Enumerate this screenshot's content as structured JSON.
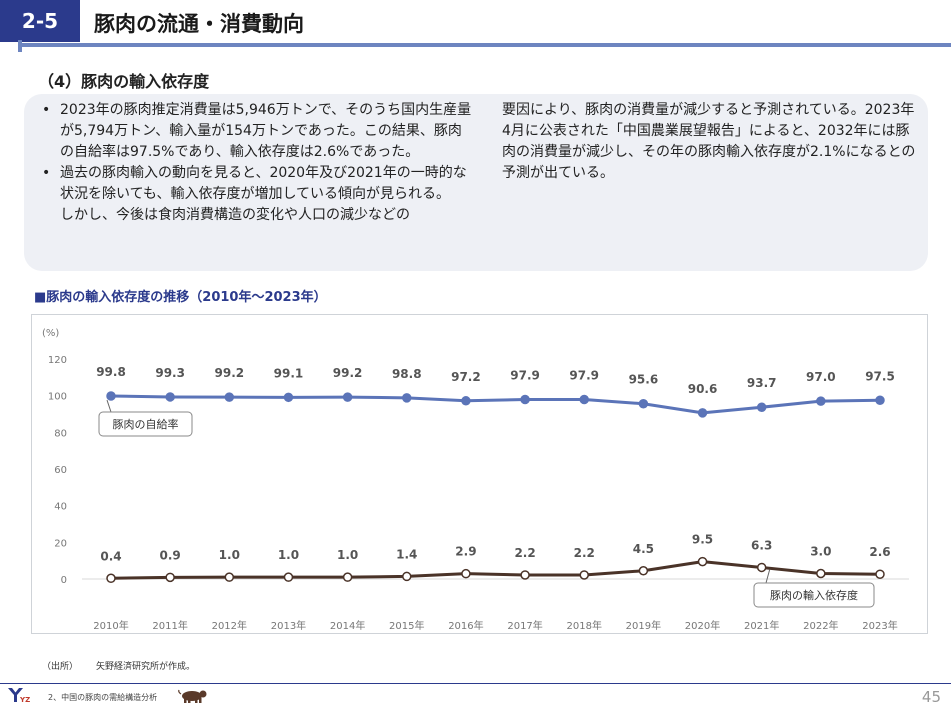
{
  "header": {
    "badge": "2-5",
    "title": "豚肉の流通・消費動向"
  },
  "section_title": "（4）豚肉の輸入依存度",
  "body": {
    "bullet1": "2023年の豚肉推定消費量は5,946万トンで、そのうち国内生産量が5,794万トン、輸入量が154万トンであった。この結果、豚肉の自給率は97.5%であり、輸入依存度は2.6%であった。",
    "bullet2": "過去の豚肉輸入の動向を見ると、2020年及び2021年の一時的な状況を除いても、輸入依存度が増加している傾向が見られる。",
    "bullet2_cont": "しかし、今後は食肉消費構造の変化や人口の減少などの",
    "right": "要因により、豚肉の消費量が減少すると予測されている。2023年4月に公表された「中国農業展望報告」によると、2032年には豚肉の消費量が減少し、その年の豚肉輸入依存度が2.1%になるとの予測が出ている。"
  },
  "chart_title": "■豚肉の輸入依存度の推移（2010年～2023年）",
  "chart_data": {
    "type": "line",
    "title": "豚肉の輸入依存度の推移（2010年～2023年）",
    "ylabel": "(%)",
    "ylim": [
      0,
      120
    ],
    "yticks": [
      "0",
      "20",
      "40",
      "60",
      "80",
      "100",
      "120"
    ],
    "categories": [
      "2010年",
      "2011年",
      "2012年",
      "2013年",
      "2014年",
      "2015年",
      "2016年",
      "2017年",
      "2018年",
      "2019年",
      "2020年",
      "2021年",
      "2022年",
      "2023年"
    ],
    "series": [
      {
        "name": "豚肉の自給率",
        "color": "#5b74b8",
        "values": [
          99.8,
          99.3,
          99.2,
          99.1,
          99.2,
          98.8,
          97.2,
          97.9,
          97.9,
          95.6,
          90.6,
          93.7,
          97.0,
          97.5
        ],
        "labels": [
          "99.8",
          "99.3",
          "99.2",
          "99.1",
          "99.2",
          "98.8",
          "97.2",
          "97.9",
          "97.9",
          "95.6",
          "90.6",
          "93.7",
          "97.0",
          "97.5"
        ]
      },
      {
        "name": "豚肉の輸入依存度",
        "color": "#4a3328",
        "values": [
          0.4,
          0.9,
          1.0,
          1.0,
          1.0,
          1.4,
          2.9,
          2.2,
          2.2,
          4.5,
          9.5,
          6.3,
          3.0,
          2.6
        ],
        "labels": [
          "0.4",
          "0.9",
          "1.0",
          "1.0",
          "1.0",
          "1.4",
          "2.9",
          "2.2",
          "2.2",
          "4.5",
          "9.5",
          "6.3",
          "3.0",
          "2.6"
        ]
      }
    ]
  },
  "source": {
    "label": "（出所）",
    "text": "矢野経済研究所が作成。"
  },
  "footer": {
    "text": "2、中国の豚肉の需給構造分析",
    "page": "45",
    "logo_text": "YZ"
  },
  "colors": {
    "brand": "#2b3a8c",
    "accent_line": "#6d85c0",
    "box_bg": "#eef0f5"
  }
}
